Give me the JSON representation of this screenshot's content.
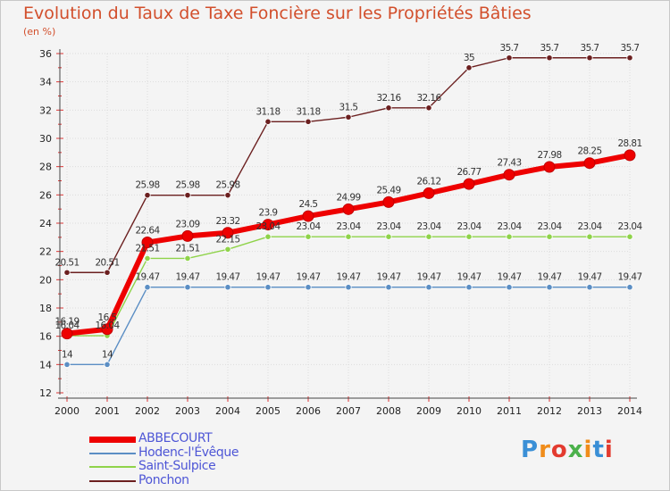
{
  "title": "Evolution du Taux de Taxe Foncière sur les Propriétés Bâties",
  "unit": "(en %)",
  "logo": "Proxiti",
  "chart_data": {
    "type": "line",
    "title": "Evolution du Taux de Taxe Foncière sur les Propriétés Bâties",
    "ylabel": "(en %)",
    "xlabel": "",
    "ylim": [
      12,
      36
    ],
    "yticks": [
      12,
      14,
      16,
      18,
      20,
      22,
      24,
      26,
      28,
      30,
      32,
      34,
      36
    ],
    "x": [
      "2000",
      "2001",
      "2002",
      "2003",
      "2004",
      "2005",
      "2006",
      "2007",
      "2008",
      "2009",
      "2010",
      "2011",
      "2012",
      "2013",
      "2014"
    ],
    "grid": true,
    "legend_position": "bottom-left",
    "series": [
      {
        "name": "ABBECOURT",
        "color": "#ee0000",
        "values": [
          16.19,
          16.5,
          22.64,
          23.09,
          23.32,
          23.9,
          24.5,
          24.99,
          25.49,
          26.12,
          26.77,
          27.43,
          27.98,
          28.25,
          28.81
        ],
        "labels": [
          "16.19",
          "16.5",
          "22.64",
          "23.09",
          "23.32",
          "23.9",
          "24.5",
          "24.99",
          "25.49",
          "26.12",
          "26.77",
          "27.43",
          "27.98",
          "28.25",
          "28.81"
        ]
      },
      {
        "name": "Hodenc-l'Évêque",
        "color": "#5b8ec4",
        "values": [
          14,
          14,
          19.47,
          19.47,
          19.47,
          19.47,
          19.47,
          19.47,
          19.47,
          19.47,
          19.47,
          19.47,
          19.47,
          19.47,
          19.47
        ],
        "labels": [
          "14",
          "14",
          "19.47",
          "19.47",
          "19.47",
          "19.47",
          "19.47",
          "19.47",
          "19.47",
          "19.47",
          "19.47",
          "19.47",
          "19.47",
          "19.47",
          "19.47"
        ]
      },
      {
        "name": "Saint-Sulpice",
        "color": "#8fd34a",
        "values": [
          16.04,
          16.04,
          21.51,
          21.51,
          22.15,
          23.04,
          23.04,
          23.04,
          23.04,
          23.04,
          23.04,
          23.04,
          23.04,
          23.04,
          23.04
        ],
        "labels": [
          "16.04",
          "16.04",
          "21.51",
          "21.51",
          "22.15",
          "23.04",
          "23.04",
          "23.04",
          "23.04",
          "23.04",
          "23.04",
          "23.04",
          "23.04",
          "23.04",
          "23.04"
        ]
      },
      {
        "name": "Ponchon",
        "color": "#6b1f1f",
        "values": [
          20.51,
          20.51,
          25.98,
          25.98,
          25.98,
          31.18,
          31.18,
          31.5,
          32.16,
          32.16,
          35,
          35.7,
          35.7,
          35.7,
          35.7
        ],
        "labels": [
          "20.51",
          "20.51",
          "25.98",
          "25.98",
          "25.98",
          "31.18",
          "31.18",
          "31.5",
          "32.16",
          "32.16",
          "35",
          "35.7",
          "35.7",
          "35.7",
          "35.7"
        ]
      }
    ]
  }
}
